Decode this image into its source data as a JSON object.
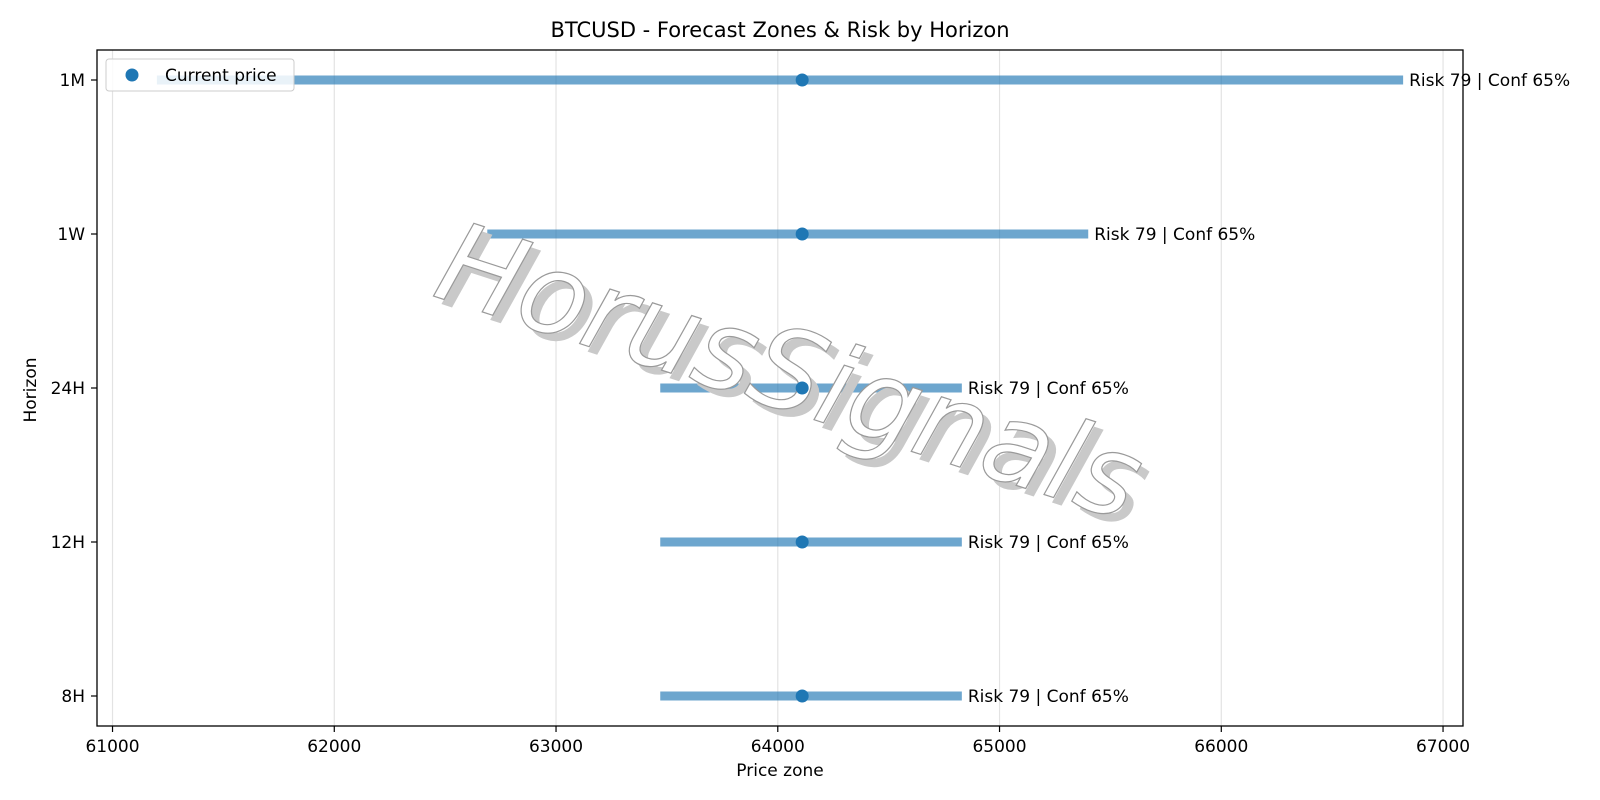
{
  "chart_data": {
    "type": "range",
    "title": "BTCUSD - Forecast Zones & Risk by Horizon",
    "xlabel": "Price zone",
    "ylabel": "Horizon",
    "xlim": [
      60930,
      67090
    ],
    "xticks": [
      61000,
      62000,
      63000,
      64000,
      65000,
      66000,
      67000
    ],
    "grid": "vertical",
    "legend": {
      "position": "top-left",
      "entries": [
        "Current price"
      ]
    },
    "series_color": "#1f77b4",
    "categories": [
      "1M",
      "1W",
      "24H",
      "12H",
      "8H"
    ],
    "ranges": [
      {
        "horizon": "1M",
        "low": 61200,
        "high": 66820,
        "current": 64110,
        "label": "Risk 79 | Conf 65%"
      },
      {
        "horizon": "1W",
        "low": 62690,
        "high": 65400,
        "current": 64110,
        "label": "Risk 79 | Conf 65%"
      },
      {
        "horizon": "24H",
        "low": 63470,
        "high": 64830,
        "current": 64110,
        "label": "Risk 79 | Conf 65%"
      },
      {
        "horizon": "12H",
        "low": 63470,
        "high": 64830,
        "current": 64110,
        "label": "Risk 79 | Conf 65%"
      },
      {
        "horizon": "8H",
        "low": 63470,
        "high": 64830,
        "current": 64110,
        "label": "Risk 79 | Conf 65%"
      }
    ]
  },
  "watermark": "HorusSignals"
}
